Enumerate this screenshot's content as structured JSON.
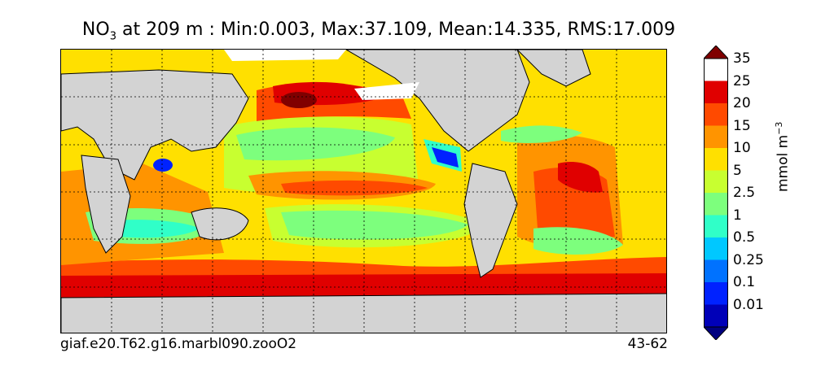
{
  "title": {
    "variable": "NO",
    "subscript": "3",
    "rest": " at 209 m : Min:0.003, Max:37.109, Mean:14.335, RMS:17.009"
  },
  "footer": {
    "case_name": "giaf.e20.T62.g16.marbl090.zooO2",
    "years": "43-62"
  },
  "colorbar": {
    "unit_label": "mmol m",
    "unit_superscript": "−3",
    "levels": [
      {
        "label": "",
        "color": "#000080"
      },
      {
        "label": "0.01",
        "color": "#0000b8"
      },
      {
        "label": "0.1",
        "color": "#0022ff"
      },
      {
        "label": "0.25",
        "color": "#0072ff"
      },
      {
        "label": "0.5",
        "color": "#00c8ff"
      },
      {
        "label": "1",
        "color": "#30ffc8"
      },
      {
        "label": "2.5",
        "color": "#7dff7d"
      },
      {
        "label": "5",
        "color": "#c8ff30"
      },
      {
        "label": "10",
        "color": "#ffe000"
      },
      {
        "label": "15",
        "color": "#ff9400"
      },
      {
        "label": "20",
        "color": "#ff4a00"
      },
      {
        "label": "25",
        "color": "#e00000"
      },
      {
        "label": "35",
        "color": "#800000"
      }
    ]
  },
  "map": {
    "land_color": "#d3d3d3",
    "ice_color": "#ffffff",
    "gridlines": "dashed"
  }
}
